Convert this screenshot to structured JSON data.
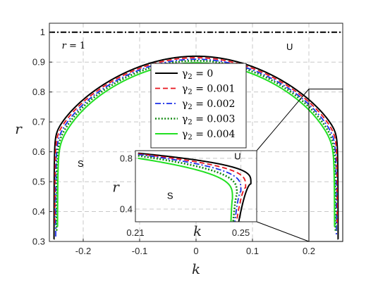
{
  "chart_data": {
    "type": "line",
    "xlabel": "k",
    "ylabel": "r",
    "xlim": [
      -0.26,
      0.26
    ],
    "ylim": [
      0.3,
      1.03
    ],
    "x_ticks": [
      {
        "v": -0.2,
        "label": "-0.2"
      },
      {
        "v": -0.1,
        "label": "-0.1"
      },
      {
        "v": 0,
        "label": "0"
      },
      {
        "v": 0.1,
        "label": "0.1"
      },
      {
        "v": 0.2,
        "label": "0.2"
      }
    ],
    "y_ticks": [
      {
        "v": 0.3,
        "label": "0.3"
      },
      {
        "v": 0.4,
        "label": "0.4"
      },
      {
        "v": 0.5,
        "label": "0.5"
      },
      {
        "v": 0.6,
        "label": "0.6"
      },
      {
        "v": 0.7,
        "label": "0.7"
      },
      {
        "v": 0.8,
        "label": "0.8"
      },
      {
        "v": 0.9,
        "label": "0.9"
      },
      {
        "v": 1,
        "label": "1"
      }
    ],
    "grid": true,
    "legend_position": "center",
    "reference_line": {
      "y": 1,
      "label": "r = 1",
      "color": "#000000"
    },
    "regions": [
      {
        "label": "U",
        "x": 0.16,
        "y": 0.94
      },
      {
        "label": "S",
        "x": -0.21,
        "y": 0.55
      }
    ],
    "series": [
      {
        "name": "γ2 = 0",
        "legend_prefix": "γ",
        "legend_sub": "2",
        "legend_suffix": " = 0",
        "color": "#000000",
        "dash": "solid",
        "width": 2.0,
        "peak": 0.92,
        "edge": 0.252,
        "sharp": 0.03
      },
      {
        "name": "γ2 = 0.001",
        "legend_prefix": "γ",
        "legend_sub": "2",
        "legend_suffix": " = 0.001",
        "color": "#e8141c",
        "dash": "dashed",
        "width": 1.8,
        "peak": 0.915,
        "edge": 0.2505,
        "sharp": 0.034
      },
      {
        "name": "γ2 = 0.002",
        "legend_prefix": "γ",
        "legend_sub": "2",
        "legend_suffix": " = 0.002",
        "color": "#1a2ee8",
        "dash": "dashdot",
        "width": 1.8,
        "peak": 0.91,
        "edge": 0.249,
        "sharp": 0.038
      },
      {
        "name": "γ2 = 0.003",
        "legend_prefix": "γ",
        "legend_sub": "2",
        "legend_suffix": " = 0.003",
        "color": "#128a12",
        "dash": "dotted",
        "width": 2.6,
        "peak": 0.905,
        "edge": 0.2475,
        "sharp": 0.042
      },
      {
        "name": "γ2 = 0.004",
        "legend_prefix": "γ",
        "legend_sub": "2",
        "legend_suffix": " = 0.004",
        "color": "#22e022",
        "dash": "solid",
        "width": 2.0,
        "peak": 0.898,
        "edge": 0.246,
        "sharp": 0.046
      }
    ],
    "inset": {
      "xlim": [
        0.21,
        0.256
      ],
      "ylim": [
        0.3,
        0.86
      ],
      "xlabel": "k",
      "ylabel": "r",
      "x_ticks": [
        {
          "v": 0.21,
          "label": "0.21"
        },
        {
          "v": 0.25,
          "label": "0.25"
        }
      ],
      "y_ticks": [
        {
          "v": 0.4,
          "label": "0.4"
        },
        {
          "v": 0.8,
          "label": "0.8"
        }
      ],
      "regions": [
        {
          "label": "U",
          "x": 0.2475,
          "y": 0.79
        },
        {
          "label": "S",
          "x": 0.222,
          "y": 0.48
        }
      ],
      "zoom_box": {
        "x0": 0.2,
        "x1": 0.26,
        "y0": 0.3,
        "y1": 0.81
      }
    }
  }
}
